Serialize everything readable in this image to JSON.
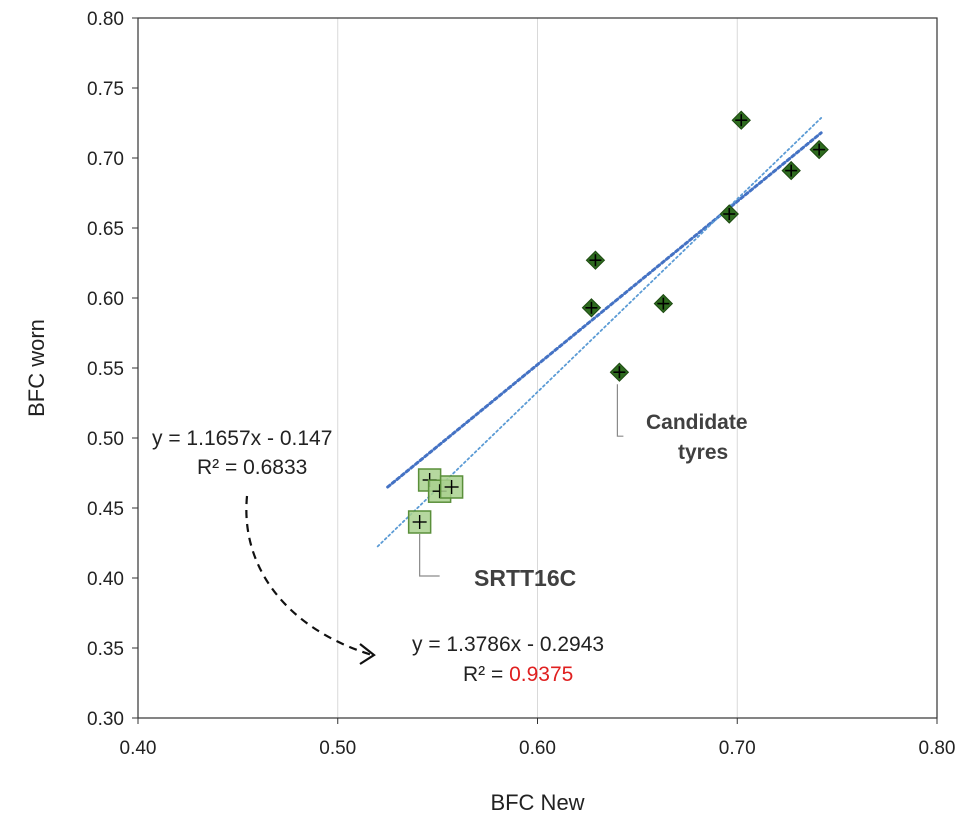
{
  "chart_data": {
    "type": "scatter",
    "xlabel": "BFC New",
    "ylabel": "BFC  worn",
    "xlim": [
      0.4,
      0.8
    ],
    "ylim": [
      0.3,
      0.8
    ],
    "x_ticks": [
      "0.40",
      "0.50",
      "0.60",
      "0.70",
      "0.80"
    ],
    "y_ticks": [
      "0.30",
      "0.35",
      "0.40",
      "0.45",
      "0.50",
      "0.55",
      "0.60",
      "0.65",
      "0.70",
      "0.75",
      "0.80"
    ],
    "grid": "vertical",
    "series": [
      {
        "name": "Candidate tyres",
        "marker": "diamond",
        "color": "#2e6b1f",
        "points": [
          {
            "x": 0.627,
            "y": 0.593
          },
          {
            "x": 0.629,
            "y": 0.627
          },
          {
            "x": 0.641,
            "y": 0.547
          },
          {
            "x": 0.663,
            "y": 0.596
          },
          {
            "x": 0.696,
            "y": 0.66
          },
          {
            "x": 0.702,
            "y": 0.727
          },
          {
            "x": 0.727,
            "y": 0.691
          },
          {
            "x": 0.741,
            "y": 0.706
          }
        ]
      },
      {
        "name": "SRTT16C",
        "marker": "square",
        "color": "#a9d18e",
        "points": [
          {
            "x": 0.541,
            "y": 0.44
          },
          {
            "x": 0.546,
            "y": 0.47
          },
          {
            "x": 0.551,
            "y": 0.462
          },
          {
            "x": 0.557,
            "y": 0.465
          }
        ]
      }
    ],
    "trendlines": [
      {
        "slope": 1.1657,
        "intercept": -0.147,
        "x_range": [
          0.525,
          0.742
        ],
        "style": "dotted-thick",
        "color": "#4472c4"
      },
      {
        "slope": 1.3786,
        "intercept": -0.2943,
        "x_range": [
          0.52,
          0.742
        ],
        "style": "dotted-thin",
        "color": "#5b9bd5"
      }
    ],
    "annotations": {
      "eq1_line1": "y = 1.1657x  - 0.147",
      "eq1_line2": "R² = 0.6833",
      "eq2_line1": "y = 1.3786x  - 0.2943",
      "eq2_line2_prefix": "R² = ",
      "eq2_line2_value": "0.9375",
      "eq2_value_color": "#e02020",
      "candidate_line1": "Candidate",
      "candidate_line2": "tyres",
      "srtt_label": "SRTT16C"
    }
  }
}
